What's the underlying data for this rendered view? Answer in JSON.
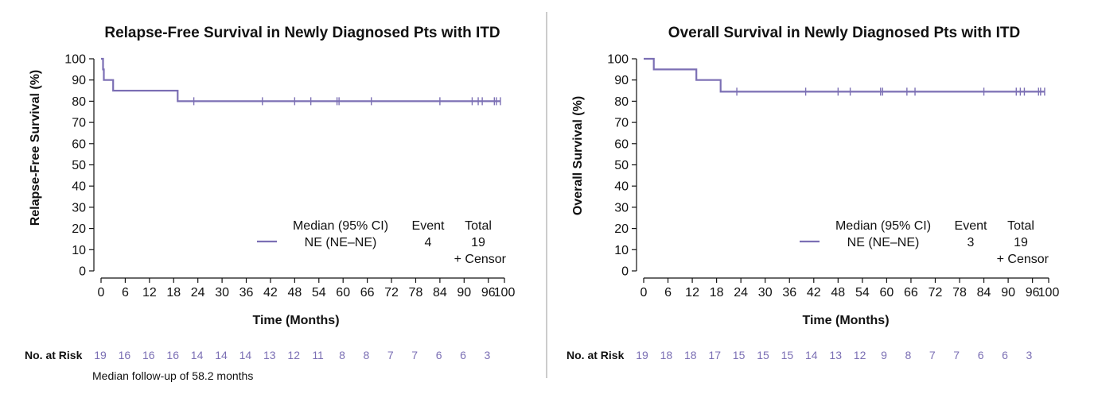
{
  "colors": {
    "line": "#7b6fb4",
    "risk_values": "#7b6fb4",
    "text": "#111111",
    "divider": "#9a9a9a"
  },
  "footnote": "Median follow-up of 58.2 months",
  "chart_data": [
    {
      "type": "line",
      "title": "Relapse-Free Survival in Newly Diagnosed Pts with ITD",
      "xlabel": "Time (Months)",
      "ylabel": "Relapse-Free Survival (%)",
      "xlim": [
        0,
        100
      ],
      "ylim": [
        0,
        100
      ],
      "xticks": [
        "0",
        "6",
        "12",
        "18",
        "24",
        "30",
        "36",
        "42",
        "48",
        "54",
        "60",
        "66",
        "72",
        "78",
        "84",
        "90",
        "96",
        "100"
      ],
      "yticks": [
        "0",
        "10",
        "20",
        "30",
        "40",
        "50",
        "60",
        "70",
        "80",
        "90",
        "100"
      ],
      "series": [
        {
          "step": [
            [
              0,
              100
            ],
            [
              0.5,
              100
            ],
            [
              0.5,
              95
            ],
            [
              0.7,
              95
            ],
            [
              0.7,
              90
            ],
            [
              3,
              90
            ],
            [
              3,
              85
            ],
            [
              19,
              85
            ],
            [
              19,
              80
            ],
            [
              99,
              80
            ]
          ],
          "censor_x": [
            23,
            40,
            48,
            52,
            58.5,
            59,
            67,
            84,
            92,
            93.5,
            94.5,
            97.5,
            98,
            99
          ]
        }
      ],
      "legend": {
        "headers": [
          "Median (95% CI)",
          "Event",
          "Total"
        ],
        "row": [
          "NE (NE–NE)",
          "4",
          "19"
        ],
        "censor_note": "+ Censor"
      },
      "risk_table": {
        "label": "No. at Risk",
        "values": [
          "19",
          "16",
          "16",
          "16",
          "14",
          "14",
          "14",
          "13",
          "12",
          "11",
          "8",
          "8",
          "7",
          "7",
          "6",
          "6",
          "3"
        ]
      }
    },
    {
      "type": "line",
      "title": "Overall Survival in Newly Diagnosed Pts with ITD",
      "xlabel": "Time (Months)",
      "ylabel": "Overall Survival (%)",
      "xlim": [
        0,
        100
      ],
      "ylim": [
        0,
        100
      ],
      "xticks": [
        "0",
        "6",
        "12",
        "18",
        "24",
        "30",
        "36",
        "42",
        "48",
        "54",
        "60",
        "66",
        "72",
        "78",
        "84",
        "90",
        "96",
        "100"
      ],
      "yticks": [
        "0",
        "10",
        "20",
        "30",
        "40",
        "50",
        "60",
        "70",
        "80",
        "90",
        "100"
      ],
      "series": [
        {
          "step": [
            [
              0,
              100
            ],
            [
              2.5,
              100
            ],
            [
              2.5,
              95
            ],
            [
              13,
              95
            ],
            [
              13,
              90
            ],
            [
              19,
              90
            ],
            [
              19,
              84.5
            ],
            [
              99,
              84.5
            ]
          ],
          "censor_x": [
            23,
            40,
            48,
            51,
            58.5,
            59,
            65,
            67,
            84,
            92,
            93,
            94,
            97.5,
            98,
            99
          ]
        }
      ],
      "legend": {
        "headers": [
          "Median (95% CI)",
          "Event",
          "Total"
        ],
        "row": [
          "NE (NE–NE)",
          "3",
          "19"
        ],
        "censor_note": "+ Censor"
      },
      "risk_table": {
        "label": "No. at Risk",
        "values": [
          "19",
          "18",
          "18",
          "17",
          "15",
          "15",
          "15",
          "14",
          "13",
          "12",
          "9",
          "8",
          "7",
          "7",
          "6",
          "6",
          "3"
        ]
      }
    }
  ]
}
